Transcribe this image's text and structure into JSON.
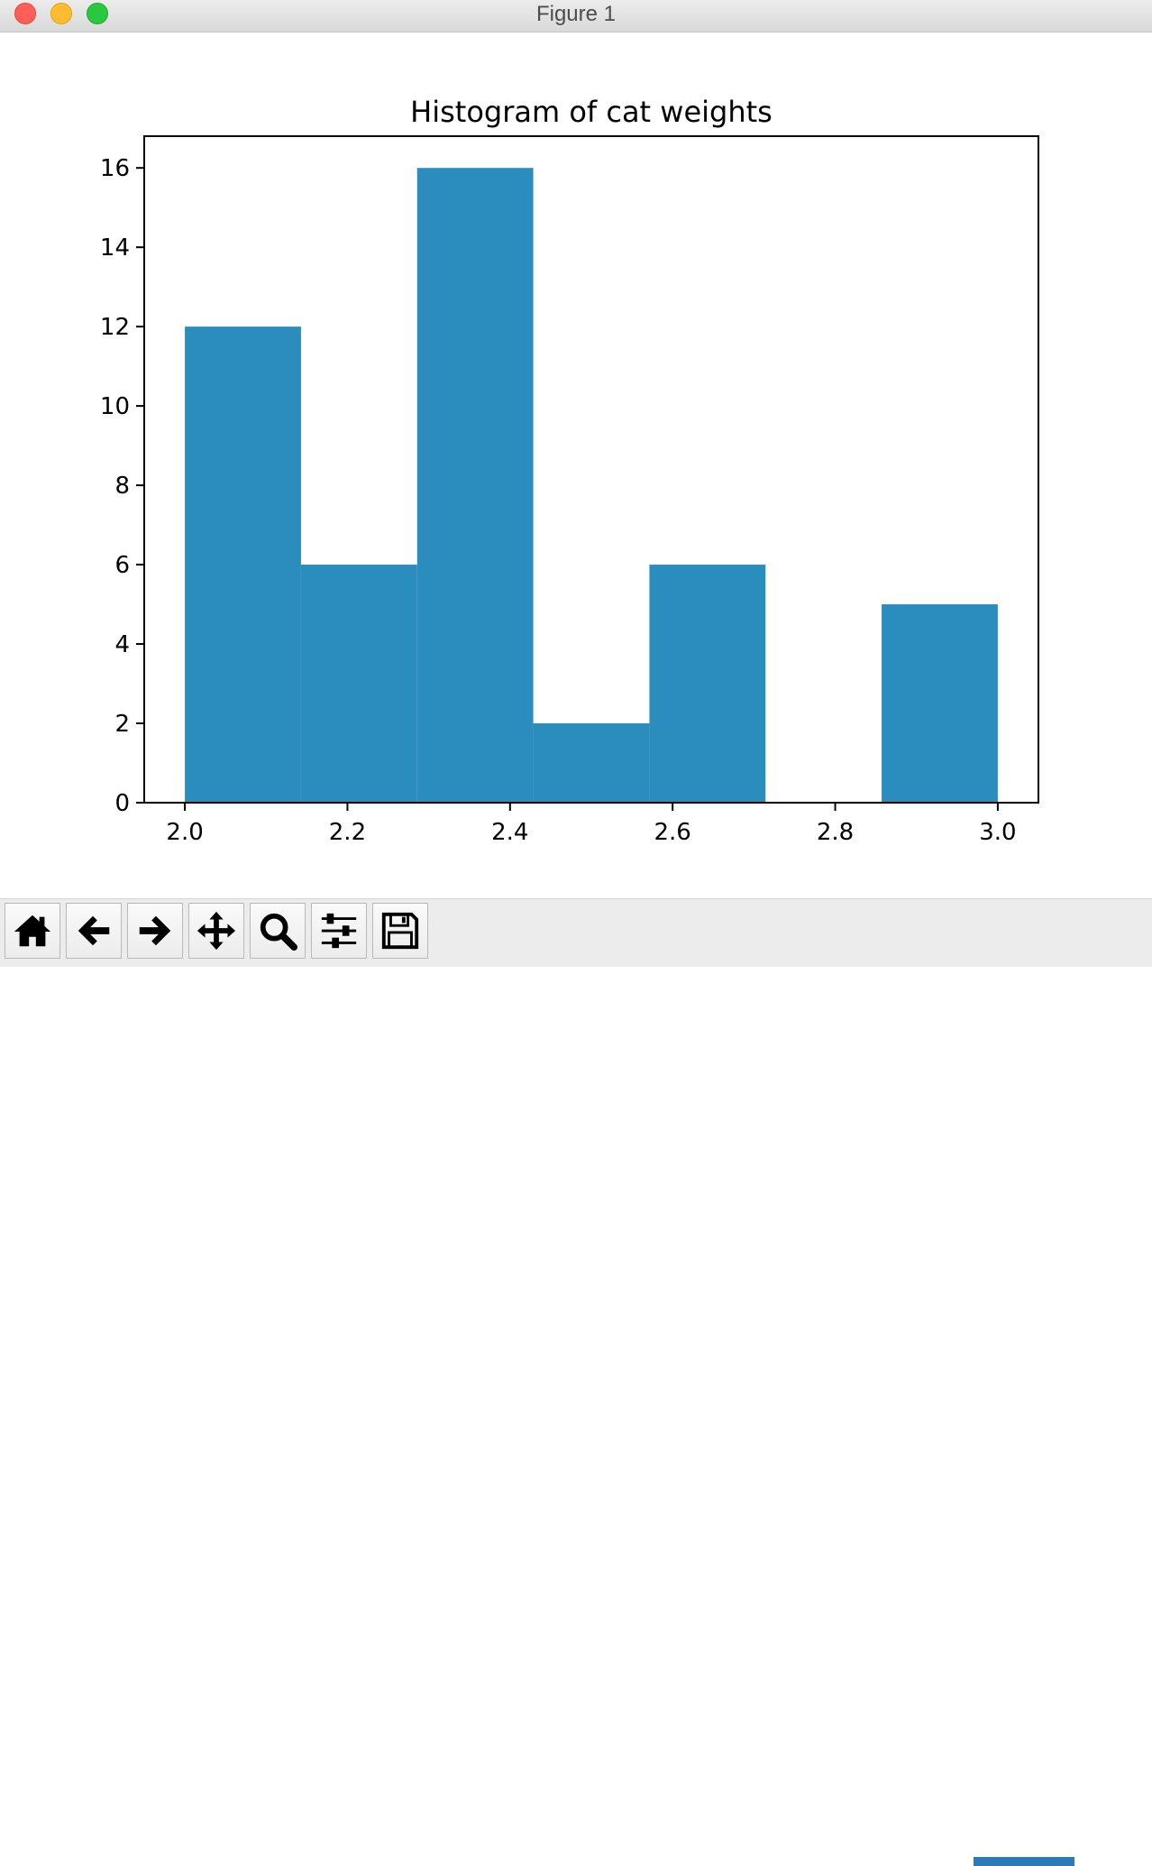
{
  "window": {
    "title": "Figure 1"
  },
  "chart_data": {
    "type": "bar",
    "title": "Histogram of cat weights",
    "xlabel": "",
    "ylabel": "",
    "bin_edges": [
      2.0,
      2.142857,
      2.285714,
      2.428571,
      2.571429,
      2.714286,
      2.857143,
      3.0
    ],
    "values": [
      12,
      6,
      16,
      2,
      6,
      0,
      5
    ],
    "xlim": [
      1.95,
      3.05
    ],
    "ylim": [
      0,
      16.8
    ],
    "xticks": [
      2.0,
      2.2,
      2.4,
      2.6,
      2.8,
      3.0
    ],
    "xtick_labels": [
      "2.0",
      "2.2",
      "2.4",
      "2.6",
      "2.8",
      "3.0"
    ],
    "yticks": [
      0,
      2,
      4,
      6,
      8,
      10,
      12,
      14,
      16
    ],
    "ytick_labels": [
      "0",
      "2",
      "4",
      "6",
      "8",
      "10",
      "12",
      "14",
      "16"
    ],
    "bar_color": "#2b8cbe",
    "grid": false,
    "legend": "none"
  },
  "toolbar": {
    "buttons": [
      {
        "name": "home",
        "icon": "home-icon"
      },
      {
        "name": "back",
        "icon": "arrow-left-icon"
      },
      {
        "name": "forward",
        "icon": "arrow-right-icon"
      },
      {
        "name": "pan",
        "icon": "move-icon"
      },
      {
        "name": "zoom",
        "icon": "magnifier-icon"
      },
      {
        "name": "configure-subplots",
        "icon": "sliders-icon"
      },
      {
        "name": "save",
        "icon": "floppy-disk-icon"
      }
    ]
  }
}
